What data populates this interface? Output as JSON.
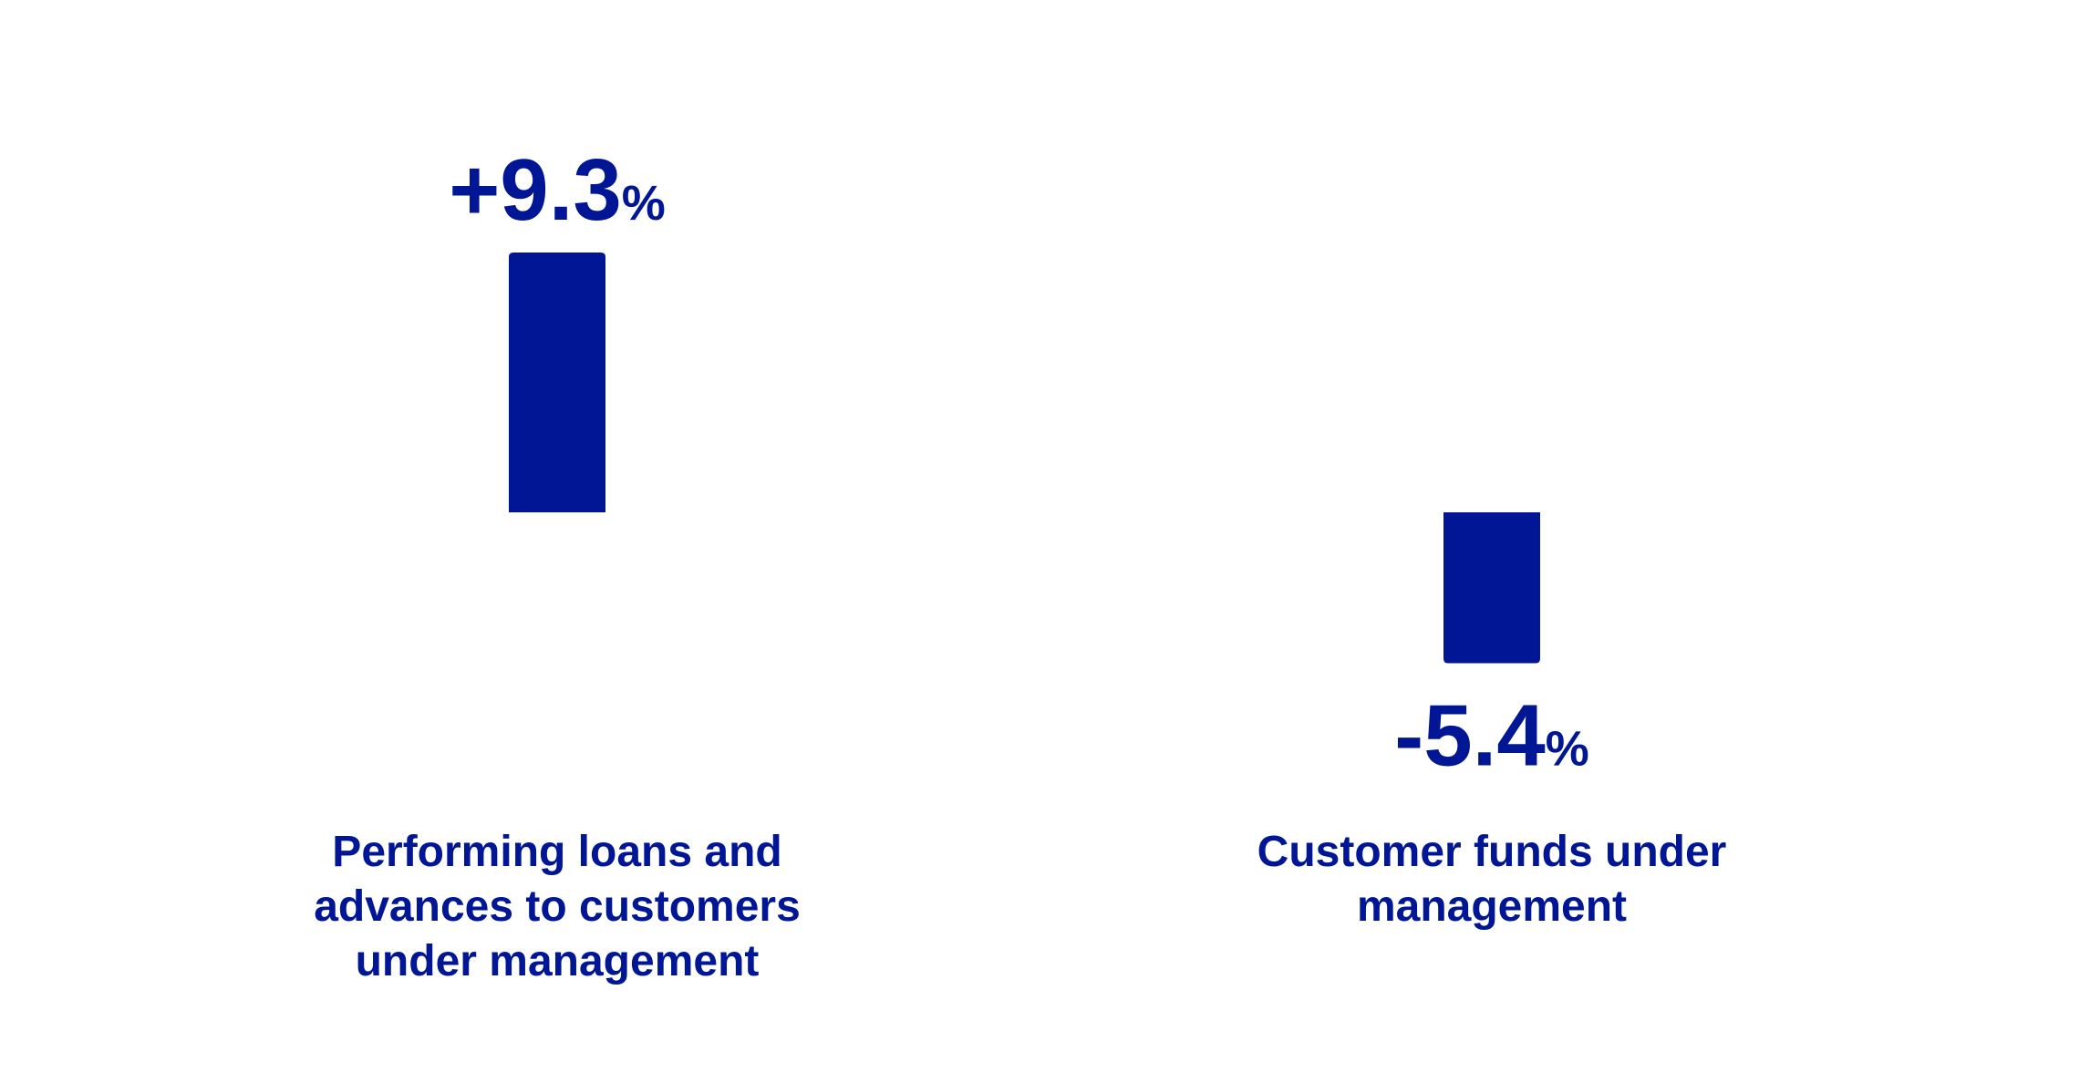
{
  "chart_data": {
    "type": "bar",
    "categories": [
      "Performing loans and\nadvances to customers\nunder management",
      "Customer funds under\nmanagement"
    ],
    "values": [
      9.3,
      -5.4
    ],
    "value_labels": [
      "+9.3",
      "-5.4"
    ],
    "unit": "%",
    "title": "",
    "xlabel": "",
    "ylabel": "",
    "grid": false,
    "legend": "none",
    "colors": {
      "bar": "#001694",
      "text": "#001694"
    }
  }
}
